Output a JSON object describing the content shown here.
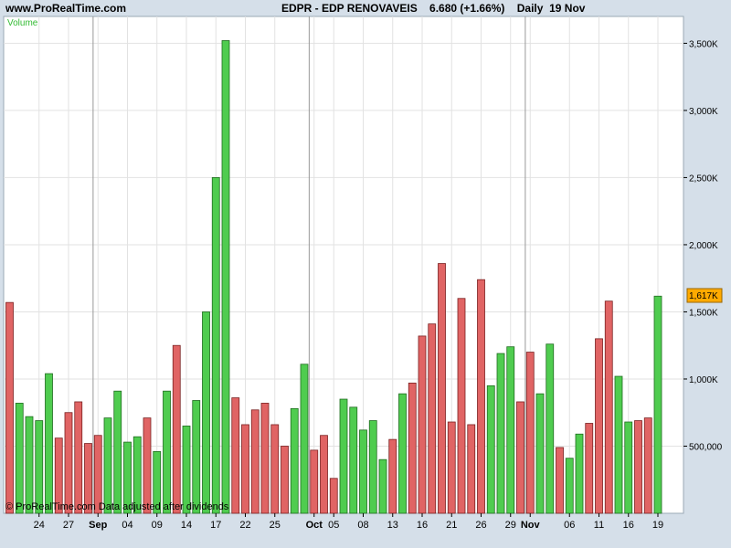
{
  "header": {
    "site": "www.ProRealTime.com",
    "quote": "EDPR - EDP RENOVAVEIS    6.680 (+1.66%)    Daily  19 Nov"
  },
  "panel": {
    "title": "Volume",
    "copyright": "© ProRealTime.com Data adjusted after dividends",
    "last_value_label": "1,617K"
  },
  "colors": {
    "up": "#4fcc4f",
    "down": "#e06464",
    "background": "#ffffff",
    "frame": "#d5dfe9",
    "grid": "#e2e2e2",
    "month_separator": "#999999",
    "title_green": "#33bb33",
    "badge": "#ffaa00"
  },
  "chart_data": {
    "type": "bar",
    "ylabel": "",
    "ylim": [
      0,
      3700000
    ],
    "y_ticks": [
      {
        "value": 500000,
        "label": "500,000"
      },
      {
        "value": 1000000,
        "label": "1,000K"
      },
      {
        "value": 1500000,
        "label": "1,500K"
      },
      {
        "value": 2000000,
        "label": "2,000K"
      },
      {
        "value": 2500000,
        "label": "2,500K"
      },
      {
        "value": 3000000,
        "label": "3,000K"
      },
      {
        "value": 3500000,
        "label": "3,500K"
      }
    ],
    "x_ticks": [
      {
        "index": 3,
        "label": "24",
        "bold": false
      },
      {
        "index": 6,
        "label": "27",
        "bold": false
      },
      {
        "index": 9,
        "label": "Sep",
        "bold": true
      },
      {
        "index": 12,
        "label": "04",
        "bold": false
      },
      {
        "index": 15,
        "label": "09",
        "bold": false
      },
      {
        "index": 18,
        "label": "14",
        "bold": false
      },
      {
        "index": 21,
        "label": "17",
        "bold": false
      },
      {
        "index": 24,
        "label": "22",
        "bold": false
      },
      {
        "index": 27,
        "label": "25",
        "bold": false
      },
      {
        "index": 31,
        "label": "Oct",
        "bold": true
      },
      {
        "index": 33,
        "label": "05",
        "bold": false
      },
      {
        "index": 36,
        "label": "08",
        "bold": false
      },
      {
        "index": 39,
        "label": "13",
        "bold": false
      },
      {
        "index": 42,
        "label": "16",
        "bold": false
      },
      {
        "index": 45,
        "label": "21",
        "bold": false
      },
      {
        "index": 48,
        "label": "26",
        "bold": false
      },
      {
        "index": 51,
        "label": "29",
        "bold": false
      },
      {
        "index": 53,
        "label": "Nov",
        "bold": true
      },
      {
        "index": 57,
        "label": "06",
        "bold": false
      },
      {
        "index": 60,
        "label": "11",
        "bold": false
      },
      {
        "index": 63,
        "label": "16",
        "bold": false
      },
      {
        "index": 66,
        "label": "19",
        "bold": false
      }
    ],
    "month_separator_after_index": [
      8.5,
      30.5,
      52.5
    ],
    "series": [
      {
        "values": [
          1570000,
          820000,
          720000,
          690000,
          1040000,
          560000,
          750000,
          830000,
          520000,
          580000,
          710000,
          910000,
          530000,
          570000,
          710000,
          460000,
          910000,
          1250000,
          650000,
          840000,
          1500000,
          2500000,
          3520000,
          860000,
          660000,
          770000,
          820000,
          660000,
          500000,
          780000,
          1110000,
          470000,
          580000,
          260000,
          850000,
          790000,
          620000,
          690000,
          400000,
          550000,
          890000,
          970000,
          1320000,
          1410000,
          1860000,
          680000,
          1600000,
          660000,
          1740000,
          950000,
          1190000,
          1240000,
          830000,
          1200000,
          890000,
          1260000,
          490000,
          410000,
          590000,
          670000,
          1300000,
          1580000,
          1020000,
          680000,
          690000,
          710000,
          1617000
        ],
        "direction": [
          "down",
          "up",
          "up",
          "up",
          "up",
          "down",
          "down",
          "down",
          "down",
          "down",
          "up",
          "up",
          "up",
          "up",
          "down",
          "up",
          "up",
          "down",
          "up",
          "up",
          "up",
          "up",
          "up",
          "down",
          "down",
          "down",
          "down",
          "down",
          "down",
          "up",
          "up",
          "down",
          "down",
          "down",
          "up",
          "up",
          "up",
          "up",
          "up",
          "down",
          "up",
          "down",
          "down",
          "down",
          "down",
          "down",
          "down",
          "down",
          "down",
          "up",
          "up",
          "up",
          "down",
          "down",
          "up",
          "up",
          "down",
          "up",
          "up",
          "down",
          "down",
          "down",
          "up",
          "up",
          "down",
          "down",
          "up"
        ]
      }
    ]
  }
}
